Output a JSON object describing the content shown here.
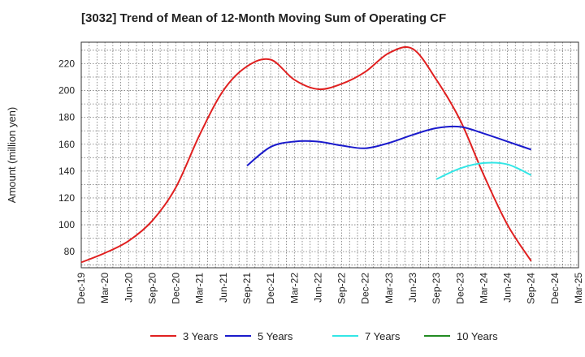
{
  "chart_data": {
    "type": "line",
    "title": "[3032]  Trend of Mean of 12-Month Moving Sum of Operating CF",
    "ylabel": "Amount (million yen)",
    "xlabel": "",
    "ylim": [
      68,
      236
    ],
    "yticks": [
      80,
      100,
      120,
      140,
      160,
      180,
      200,
      220
    ],
    "categories": [
      "Dec-19",
      "Mar-20",
      "Jun-20",
      "Sep-20",
      "Dec-20",
      "Mar-21",
      "Jun-21",
      "Sep-21",
      "Dec-21",
      "Mar-22",
      "Jun-22",
      "Sep-22",
      "Dec-22",
      "Mar-23",
      "Jun-23",
      "Sep-23",
      "Dec-23",
      "Mar-24",
      "Jun-24",
      "Sep-24",
      "Dec-24",
      "Mar-25"
    ],
    "grid": true,
    "legend_position": "bottom",
    "series": [
      {
        "name": "3 Years",
        "color": "#e02020",
        "values": [
          72,
          79,
          88,
          103,
          128,
          167,
          200,
          218,
          223,
          208,
          201,
          205,
          214,
          228,
          231,
          208,
          178,
          137,
          100,
          73,
          null,
          null
        ]
      },
      {
        "name": "5 Years",
        "color": "#1a1acc",
        "values": [
          null,
          null,
          null,
          null,
          null,
          null,
          null,
          144,
          158,
          162,
          162,
          159,
          157,
          161,
          167,
          172,
          173,
          168,
          162,
          156,
          null,
          null
        ]
      },
      {
        "name": "7 Years",
        "color": "#33e6e6",
        "values": [
          null,
          null,
          null,
          null,
          null,
          null,
          null,
          null,
          null,
          null,
          null,
          null,
          null,
          null,
          null,
          134,
          142,
          146,
          145,
          137,
          null,
          null
        ]
      },
      {
        "name": "10 Years",
        "color": "#228b22",
        "values": [
          null,
          null,
          null,
          null,
          null,
          null,
          null,
          null,
          null,
          null,
          null,
          null,
          null,
          null,
          null,
          null,
          null,
          null,
          null,
          null,
          null,
          null
        ]
      }
    ]
  }
}
